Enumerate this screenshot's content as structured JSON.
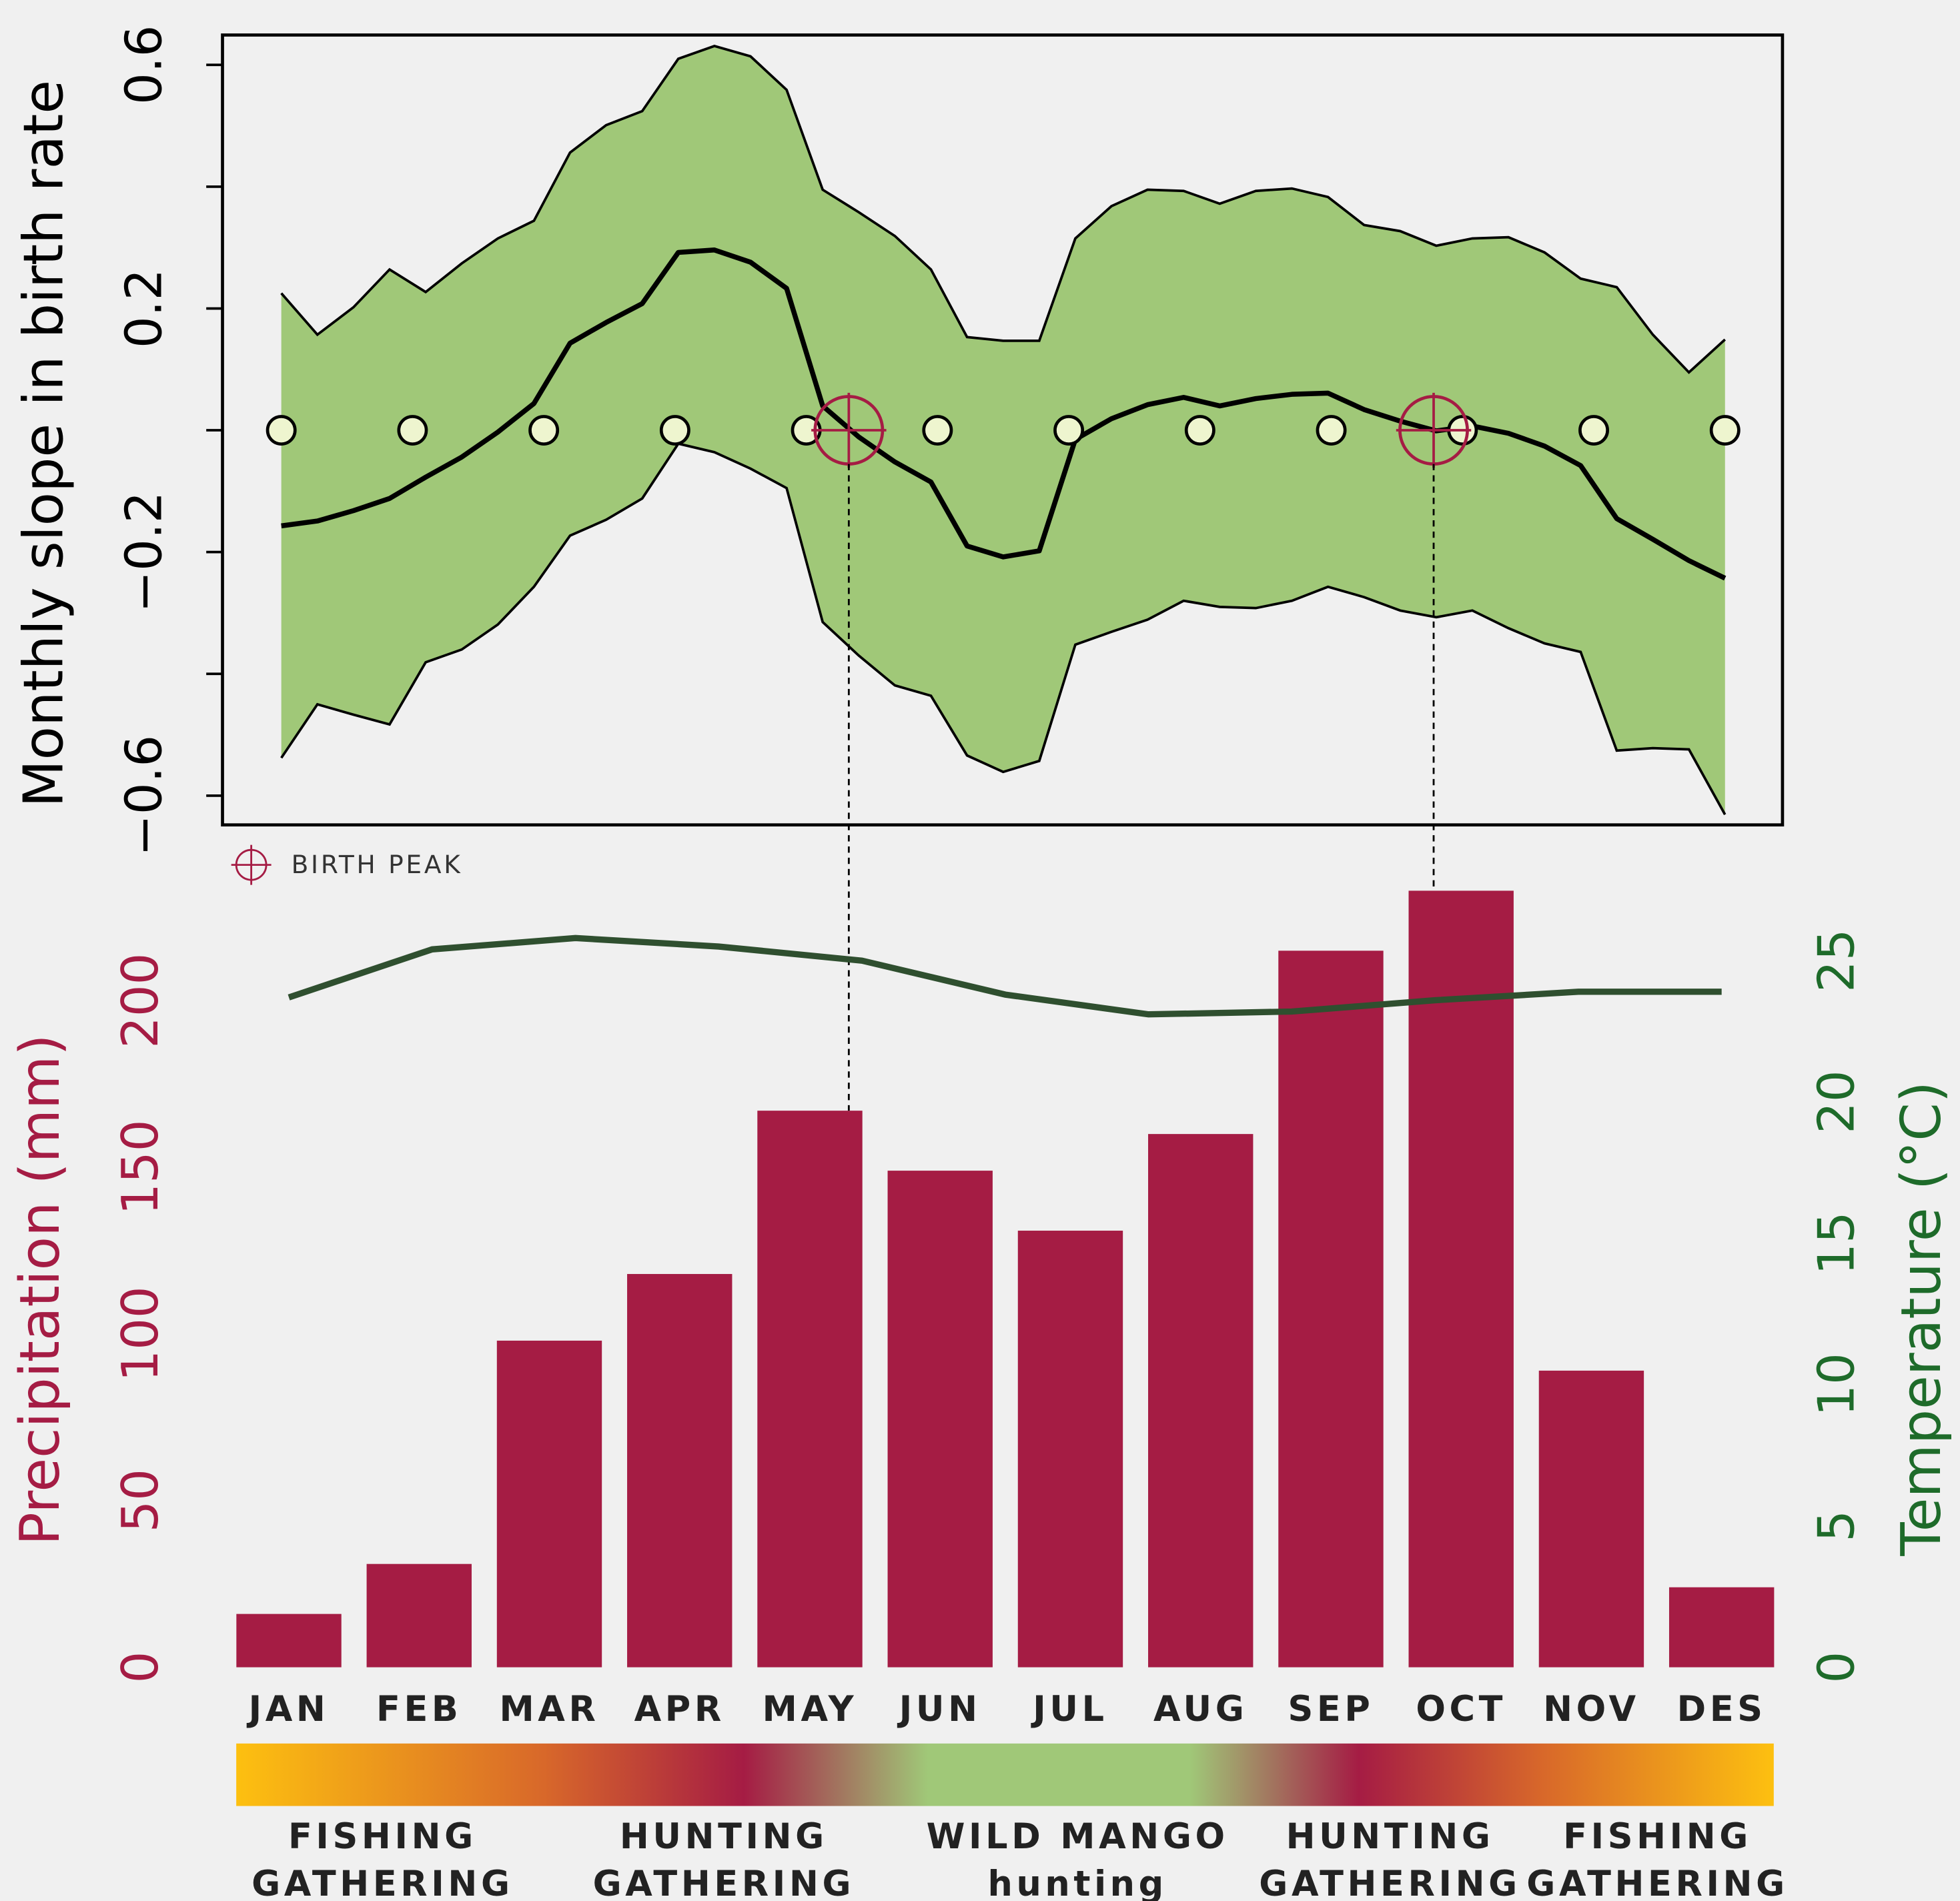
{
  "chart_data": [
    {
      "type": "band_line",
      "ylabel": "Monthly slope in birth rate",
      "xlim": [
        0.552,
        12.438
      ],
      "ylim": [
        -0.648,
        0.649
      ],
      "yticks": [
        {
          "value": -0.6,
          "label": "−0.6"
        },
        {
          "value": -0.2,
          "label": "−0.2"
        },
        0.2,
        0.6
      ],
      "yticks_minor": [
        -0.4,
        0,
        0.4
      ],
      "x": [
        1,
        1.275,
        1.55,
        1.825,
        2.1,
        2.375,
        2.65,
        2.925,
        3.2,
        3.475,
        3.75,
        4.025,
        4.3,
        4.575,
        4.85,
        5.125,
        5.4,
        5.675,
        5.95,
        6.225,
        6.5,
        6.775,
        7.05,
        7.325,
        7.6,
        7.875,
        8.15,
        8.425,
        8.7,
        8.975,
        9.25,
        9.525,
        9.8,
        10.075,
        10.35,
        10.625,
        10.9,
        11.175,
        11.45,
        11.725,
        12
      ],
      "values": [
        -0.157,
        -0.149,
        -0.132,
        -0.112,
        -0.077,
        -0.044,
        -0.003,
        0.044,
        0.143,
        0.177,
        0.208,
        0.292,
        0.296,
        0.276,
        0.233,
        0.04,
        -0.011,
        -0.052,
        -0.085,
        -0.19,
        -0.208,
        -0.198,
        -0.015,
        0.019,
        0.042,
        0.054,
        0.04,
        0.052,
        0.059,
        0.061,
        0.034,
        0.015,
        -0.001,
        0.007,
        -0.005,
        -0.026,
        -0.058,
        -0.145,
        -0.179,
        -0.214,
        -0.243
      ],
      "upper": [
        0.225,
        0.157,
        0.202,
        0.264,
        0.227,
        0.274,
        0.315,
        0.344,
        0.456,
        0.501,
        0.524,
        0.61,
        0.631,
        0.614,
        0.559,
        0.395,
        0.358,
        0.319,
        0.264,
        0.153,
        0.147,
        0.147,
        0.315,
        0.368,
        0.395,
        0.393,
        0.372,
        0.393,
        0.397,
        0.383,
        0.337,
        0.327,
        0.303,
        0.315,
        0.317,
        0.292,
        0.249,
        0.235,
        0.157,
        0.095,
        0.149
      ],
      "lower": [
        -0.538,
        -0.45,
        -0.467,
        -0.483,
        -0.381,
        -0.36,
        -0.319,
        -0.257,
        -0.173,
        -0.147,
        -0.112,
        -0.022,
        -0.036,
        -0.063,
        -0.095,
        -0.315,
        -0.37,
        -0.419,
        -0.436,
        -0.534,
        -0.561,
        -0.543,
        -0.352,
        -0.331,
        -0.311,
        -0.28,
        -0.29,
        -0.292,
        -0.28,
        -0.257,
        -0.274,
        -0.296,
        -0.307,
        -0.296,
        -0.325,
        -0.35,
        -0.364,
        -0.526,
        -0.522,
        -0.524,
        -0.631
      ],
      "band_color": "#a0c878",
      "line_color": "#000000",
      "circles": {
        "x": [
          1,
          2,
          3,
          4,
          5,
          6,
          7,
          8,
          9,
          10,
          11,
          12
        ],
        "values": [
          0,
          0,
          0,
          0,
          0,
          0,
          0,
          0,
          0,
          0,
          0,
          0
        ],
        "color": "#eef5cf"
      },
      "peaks": {
        "name": "BIRTH PEAK",
        "x": [
          5.324,
          9.78
        ],
        "values": [
          0,
          0
        ],
        "color": "#a51c44"
      }
    },
    {
      "type": "bar_line",
      "categories": [
        "JAN",
        "FEB",
        "MAR",
        "APR",
        "MAY",
        "JUN",
        "JUL",
        "AUG",
        "SEP",
        "OCT",
        "NOV",
        "DES"
      ],
      "ylabel": "Precipitation (mm)",
      "y2label": "Temperature (°C)",
      "ylim": [
        0,
        240
      ],
      "yticks": [
        0,
        50,
        100,
        150,
        200
      ],
      "y2lim": [
        0,
        28.3
      ],
      "y2ticks": [
        0,
        5,
        10,
        15,
        20,
        25
      ],
      "values": [
        16,
        31,
        98,
        118,
        167,
        149,
        131,
        160,
        215,
        233,
        89,
        24
      ],
      "color": "#a51c44",
      "temperature": {
        "x": [
          1,
          2.1,
          3.2,
          4.3,
          5.4,
          6.5,
          7.6,
          8.7,
          9.8,
          10.9,
          12
        ],
        "values": [
          23.7,
          25.4,
          25.8,
          25.5,
          25.0,
          23.8,
          23.1,
          23.2,
          23.6,
          23.9,
          23.9
        ],
        "color": "#2f4f2f",
        "axis": "y2",
        "axis_color": "#1e6b2a"
      },
      "seasons": [
        [
          "FISHING",
          "GATHERING"
        ],
        [
          "HUNTING",
          "GATHERING"
        ],
        [
          "WILD MANGO",
          "hunting"
        ],
        [
          "HUNTING",
          "GATHERING"
        ],
        [
          "FISHING",
          "GATHERING"
        ]
      ]
    }
  ]
}
